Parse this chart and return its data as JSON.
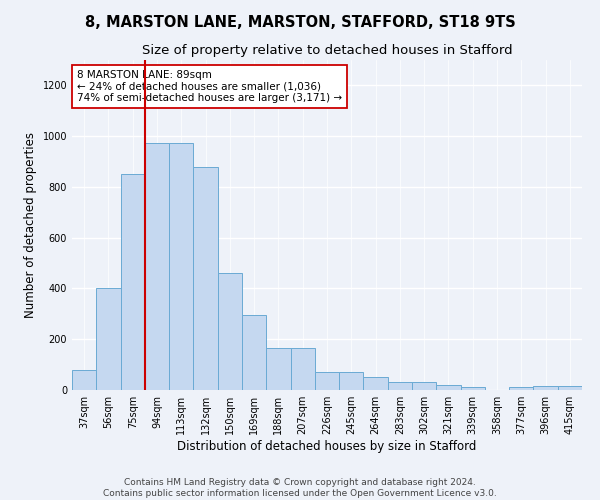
{
  "title": "8, MARSTON LANE, MARSTON, STAFFORD, ST18 9TS",
  "subtitle": "Size of property relative to detached houses in Stafford",
  "xlabel": "Distribution of detached houses by size in Stafford",
  "ylabel": "Number of detached properties",
  "categories": [
    "37sqm",
    "56sqm",
    "75sqm",
    "94sqm",
    "113sqm",
    "132sqm",
    "150sqm",
    "169sqm",
    "188sqm",
    "207sqm",
    "226sqm",
    "245sqm",
    "264sqm",
    "283sqm",
    "302sqm",
    "321sqm",
    "339sqm",
    "358sqm",
    "377sqm",
    "396sqm",
    "415sqm"
  ],
  "values": [
    80,
    400,
    850,
    975,
    975,
    880,
    460,
    295,
    165,
    165,
    70,
    70,
    50,
    30,
    30,
    20,
    10,
    0,
    10,
    15,
    15
  ],
  "bar_color": "#c5d8f0",
  "bar_edge_color": "#6aaad4",
  "vline_color": "#cc0000",
  "annotation_text": "8 MARSTON LANE: 89sqm\n← 24% of detached houses are smaller (1,036)\n74% of semi-detached houses are larger (3,171) →",
  "annotation_box_color": "#ffffff",
  "annotation_box_edge": "#cc0000",
  "ylim": [
    0,
    1300
  ],
  "yticks": [
    0,
    200,
    400,
    600,
    800,
    1000,
    1200
  ],
  "footer1": "Contains HM Land Registry data © Crown copyright and database right 2024.",
  "footer2": "Contains public sector information licensed under the Open Government Licence v3.0.",
  "bg_color": "#eef2f9",
  "grid_color": "#ffffff",
  "title_fontsize": 10.5,
  "subtitle_fontsize": 9.5,
  "label_fontsize": 8.5,
  "tick_fontsize": 7,
  "footer_fontsize": 6.5,
  "annotation_fontsize": 7.5
}
